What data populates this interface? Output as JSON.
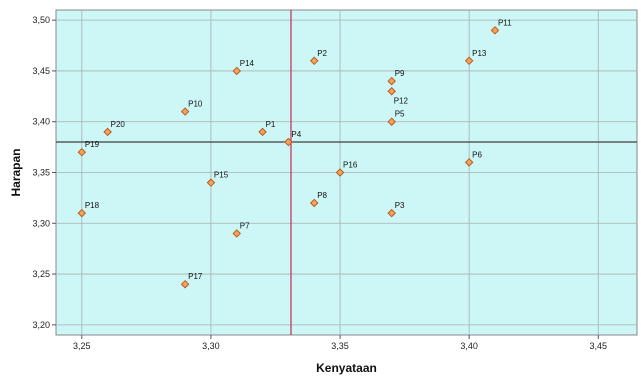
{
  "chart_data": {
    "type": "scatter",
    "xlabel": "Kenyataan",
    "ylabel": "Harapan",
    "xlim": [
      3.24,
      3.465
    ],
    "ylim": [
      3.19,
      3.51
    ],
    "x_ticks": [
      3.25,
      3.3,
      3.35,
      3.4,
      3.45
    ],
    "y_ticks": [
      3.2,
      3.25,
      3.3,
      3.35,
      3.4,
      3.45,
      3.5
    ],
    "x_tick_labels": [
      "3,25",
      "3,30",
      "3,35",
      "3,40",
      "3,45"
    ],
    "y_tick_labels": [
      "3,20",
      "3,25",
      "3,30",
      "3,35",
      "3,40",
      "3,45",
      "3,50"
    ],
    "grid": true,
    "reference_lines": {
      "x": 3.331,
      "y": 3.38
    },
    "points": [
      {
        "label": "P1",
        "x": 3.32,
        "y": 3.39
      },
      {
        "label": "P2",
        "x": 3.34,
        "y": 3.46
      },
      {
        "label": "P3",
        "x": 3.37,
        "y": 3.31
      },
      {
        "label": "P4",
        "x": 3.33,
        "y": 3.38
      },
      {
        "label": "P5",
        "x": 3.37,
        "y": 3.4
      },
      {
        "label": "P6",
        "x": 3.4,
        "y": 3.36
      },
      {
        "label": "P7",
        "x": 3.31,
        "y": 3.29
      },
      {
        "label": "P8",
        "x": 3.34,
        "y": 3.32
      },
      {
        "label": "P9",
        "x": 3.37,
        "y": 3.44
      },
      {
        "label": "P10",
        "x": 3.29,
        "y": 3.41
      },
      {
        "label": "P11",
        "x": 3.41,
        "y": 3.49
      },
      {
        "label": "P12",
        "x": 3.37,
        "y": 3.43
      },
      {
        "label": "P13",
        "x": 3.4,
        "y": 3.46
      },
      {
        "label": "P14",
        "x": 3.31,
        "y": 3.45
      },
      {
        "label": "P15",
        "x": 3.3,
        "y": 3.34
      },
      {
        "label": "P16",
        "x": 3.35,
        "y": 3.35
      },
      {
        "label": "P17",
        "x": 3.29,
        "y": 3.24
      },
      {
        "label": "P18",
        "x": 3.25,
        "y": 3.31
      },
      {
        "label": "P19",
        "x": 3.25,
        "y": 3.37
      },
      {
        "label": "P20",
        "x": 3.26,
        "y": 3.39
      }
    ],
    "colors": {
      "plot_background": "#cdf6f6",
      "grid": "#a8b0b0",
      "marker_fill": "#f3a35a",
      "marker_stroke": "#b5541a",
      "vline": "#c0304a",
      "hline": "#404040"
    }
  }
}
